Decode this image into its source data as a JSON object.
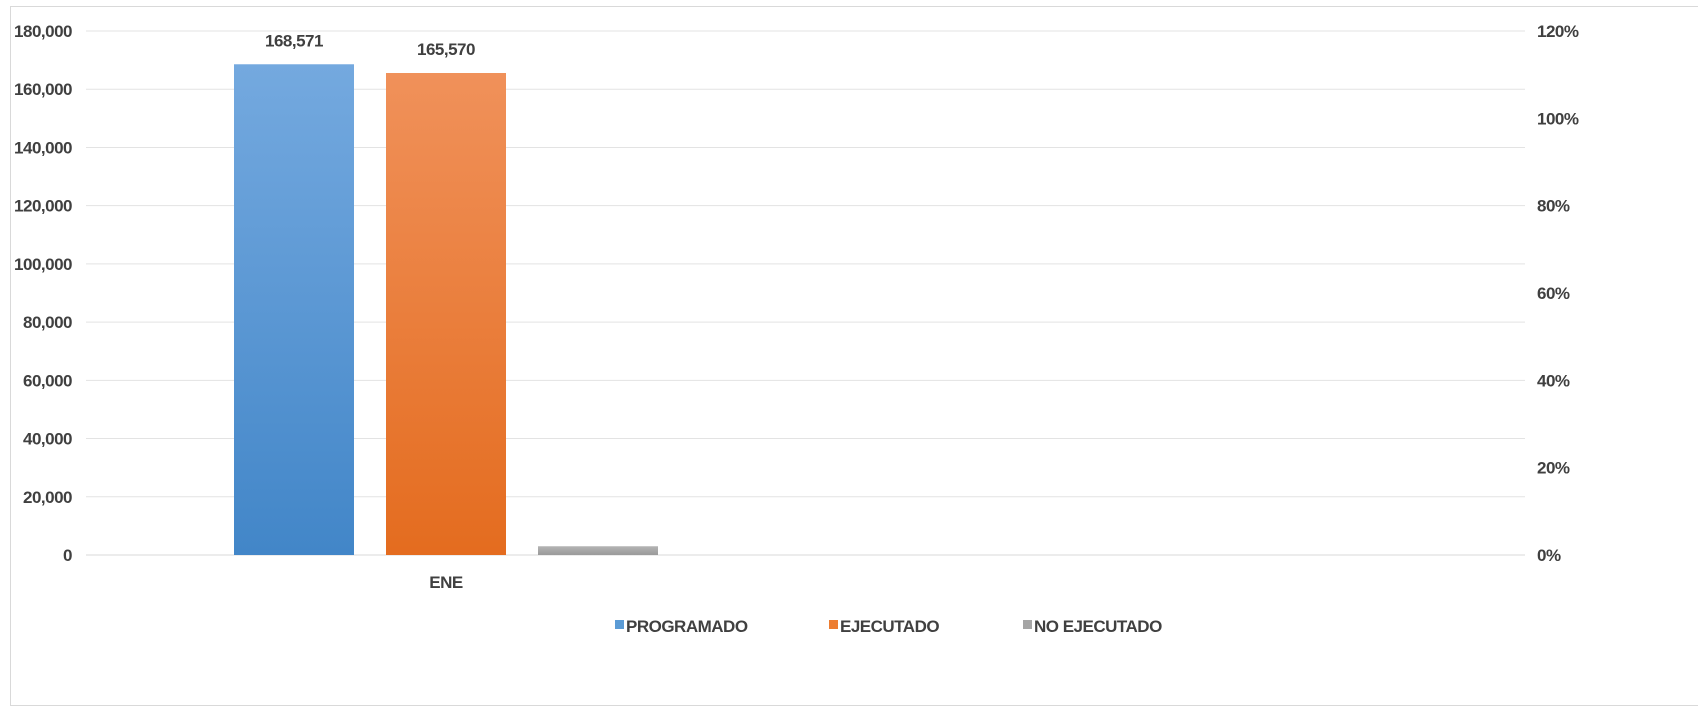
{
  "chart_data": {
    "type": "bar",
    "categories": [
      "ENE"
    ],
    "series": [
      {
        "name": "PROGRAMADO",
        "values": [
          168571
        ],
        "labels": [
          "168,571"
        ],
        "color": "#5b9bd5"
      },
      {
        "name": "EJECUTADO",
        "values": [
          165570
        ],
        "labels": [
          "165,570"
        ],
        "color": "#ed7d31"
      },
      {
        "name": "NO EJECUTADO",
        "values": [
          3001
        ],
        "labels": [
          ""
        ],
        "color": "#a5a5a5"
      }
    ],
    "ylim": [
      0,
      180000
    ],
    "y_ticks": [
      "0",
      "20,000",
      "40,000",
      "60,000",
      "80,000",
      "100,000",
      "120,000",
      "140,000",
      "160,000",
      "180,000"
    ],
    "y2lim": [
      0,
      1.2
    ],
    "y2_ticks": [
      "0%",
      "20%",
      "40%",
      "60%",
      "80%",
      "100%",
      "120%"
    ],
    "grid": true,
    "legend_position": "bottom"
  }
}
